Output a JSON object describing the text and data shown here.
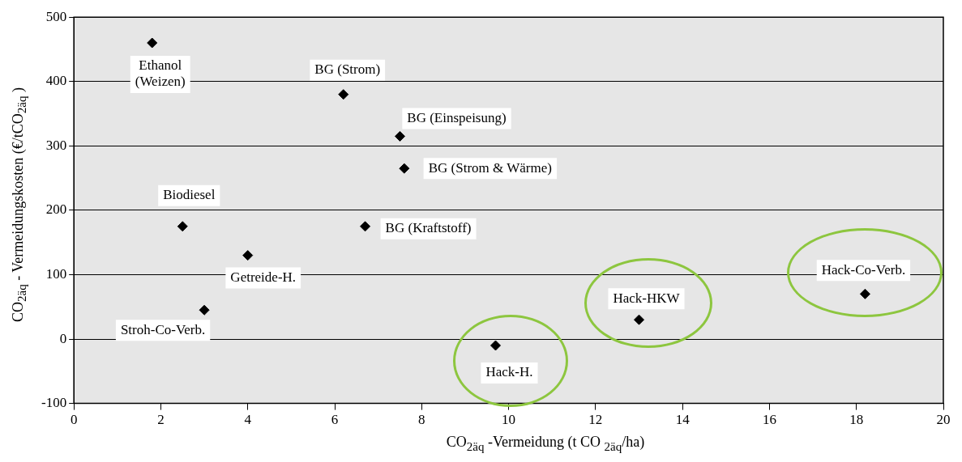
{
  "chart_data": {
    "type": "scatter",
    "xlabel": "CO$_{2äq}$ -Vermeidung (t CO $_{2äq}$/ha)",
    "ylabel": "CO$_{2äq}$ - Vermeidungskosten (€/tCO$_{2äq}$ )",
    "x": [
      1.8,
      6.2,
      7.5,
      7.6,
      2.5,
      6.7,
      4,
      3,
      9.7,
      13,
      18.2
    ],
    "values": [
      460,
      380,
      315,
      265,
      175,
      175,
      130,
      45,
      -10,
      30,
      70
    ],
    "color": "#000000",
    "marker": "diamond",
    "xlim": [
      0,
      20
    ],
    "xticks": [
      0,
      2,
      4,
      6,
      8,
      10,
      12,
      14,
      16,
      18,
      20
    ],
    "ylim": [
      -100,
      500
    ],
    "yticks": [
      -100,
      0,
      100,
      200,
      300,
      400,
      500
    ],
    "grid": "y",
    "legend": false,
    "annotations": [
      {
        "text": "Ethanol\n(Weizen)",
        "x": 1.8,
        "y": 460
      },
      {
        "text": "BG (Strom)",
        "x": 6.2,
        "y": 380
      },
      {
        "text": "BG (Einspeisung)",
        "x": 7.5,
        "y": 315
      },
      {
        "text": "BG (Strom & Wärme)",
        "x": 7.6,
        "y": 265
      },
      {
        "text": "Biodiesel",
        "x": 2.5,
        "y": 175
      },
      {
        "text": "BG (Kraftstoff)",
        "x": 6.7,
        "y": 175
      },
      {
        "text": "Getreide-H.",
        "x": 4,
        "y": 130
      },
      {
        "text": "Stroh-Co-Verb.",
        "x": 3,
        "y": 45
      },
      {
        "text": "Hack-H.",
        "x": 9.7,
        "y": -10
      },
      {
        "text": "Hack-HKW",
        "x": 13,
        "y": 30
      },
      {
        "text": "Hack-Co-Verb.",
        "x": 18.2,
        "y": 70
      }
    ]
  }
}
